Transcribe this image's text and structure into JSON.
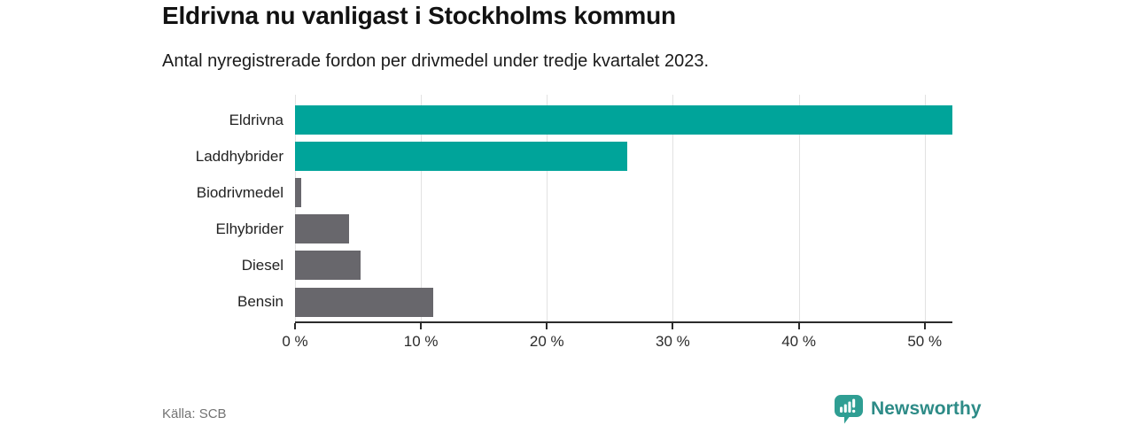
{
  "header": {
    "title": "Eldrivna nu vanligast i Stockholms kommun",
    "subtitle": "Antal nyregistrerade fordon per drivmedel under tredje kvartalet 2023."
  },
  "chart_data": {
    "type": "bar",
    "orientation": "horizontal",
    "title": "Eldrivna nu vanligast i Stockholms kommun",
    "subtitle": "Antal nyregistrerade fordon per drivmedel under tredje kvartalet 2023.",
    "categories": [
      "Eldrivna",
      "Laddhybrider",
      "Biodrivmedel",
      "Elhybrider",
      "Diesel",
      "Bensin"
    ],
    "values": [
      52.2,
      26.4,
      0.5,
      4.3,
      5.2,
      11.0
    ],
    "unit": "%",
    "bar_colors": [
      "#00a49a",
      "#00a49a",
      "#68676c",
      "#68676c",
      "#68676c",
      "#68676c"
    ],
    "xlabel": "",
    "ylabel": "",
    "xlim": [
      0,
      52.2
    ],
    "x_ticks": [
      0,
      10,
      20,
      30,
      40,
      50
    ],
    "x_tick_labels": [
      "0 %",
      "10 %",
      "20 %",
      "30 %",
      "40 %",
      "50 %"
    ],
    "grid": "vertical-only",
    "legend": "none"
  },
  "footer": {
    "source": "Källa: SCB",
    "brand": "Newsworthy"
  },
  "colors": {
    "accent_teal": "#00a49a",
    "bar_gray": "#68676c",
    "logo_teal": "#2f9e93",
    "wordmark_teal": "#2d8b87",
    "gridline": "#e2e2e2",
    "axis": "#2b2b2b",
    "title_text": "#121212",
    "muted_text": "#737373"
  }
}
